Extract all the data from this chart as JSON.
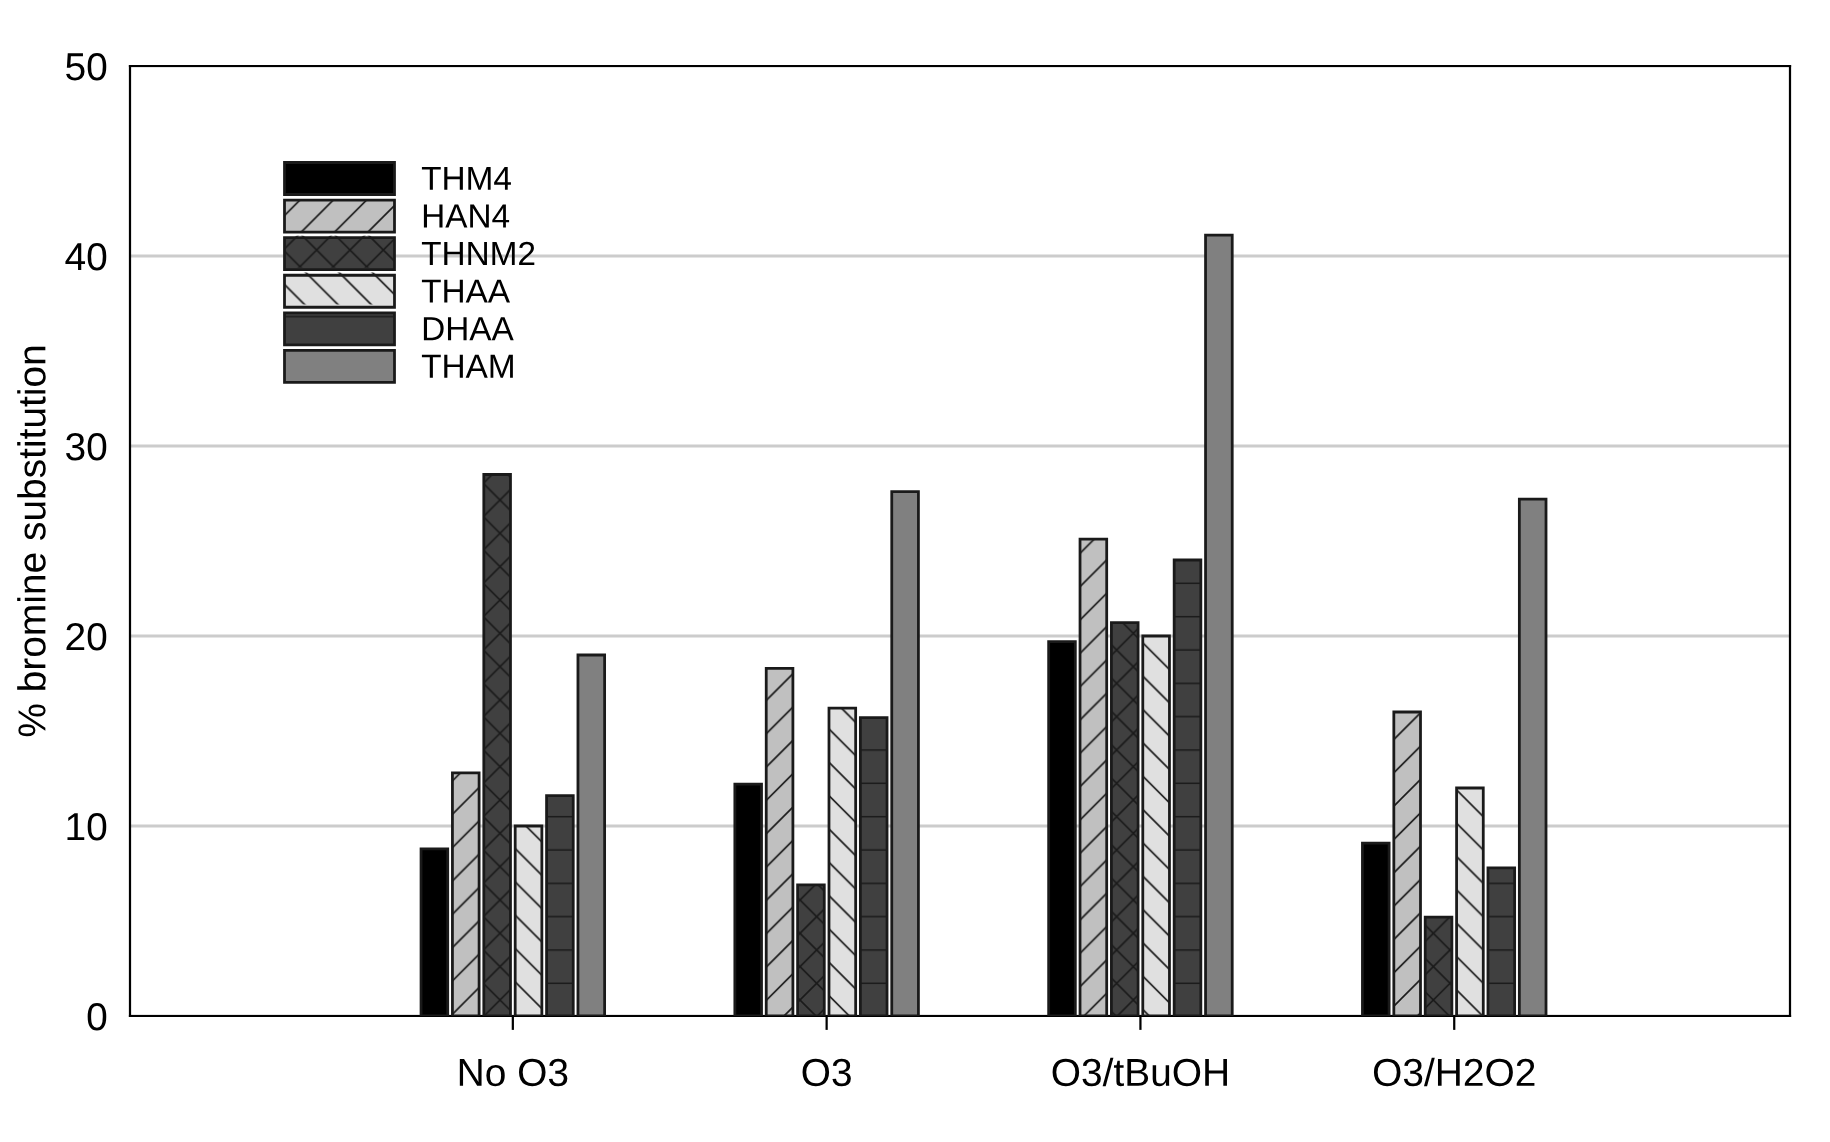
{
  "chart_data": {
    "type": "bar",
    "ylabel": "% bromine substitution",
    "categories": [
      "No O3",
      "O3",
      "O3/tBuOH",
      "O3/H2O2"
    ],
    "series": [
      {
        "name": "THM4",
        "color": "#000000",
        "values": [
          8.8,
          12.2,
          19.7,
          9.1
        ]
      },
      {
        "name": "HAN4",
        "color": "#c0c0c0",
        "values": [
          12.8,
          18.3,
          25.1,
          16.0
        ]
      },
      {
        "name": "THNM2",
        "color": "#404040",
        "values": [
          28.5,
          6.9,
          20.7,
          5.2
        ]
      },
      {
        "name": "THAA",
        "color": "#e0e0e0",
        "values": [
          10.0,
          16.2,
          20.0,
          12.0
        ]
      },
      {
        "name": "DHAA",
        "color": "#404040",
        "values": [
          11.6,
          15.7,
          24.0,
          7.8
        ]
      },
      {
        "name": "THAM",
        "color": "#808080",
        "values": [
          19.0,
          27.6,
          41.1,
          27.2
        ]
      }
    ],
    "ylim": [
      0,
      50
    ],
    "yticks": [
      0,
      10,
      20,
      30,
      40,
      50
    ],
    "grid": "y",
    "legend": "top left"
  }
}
